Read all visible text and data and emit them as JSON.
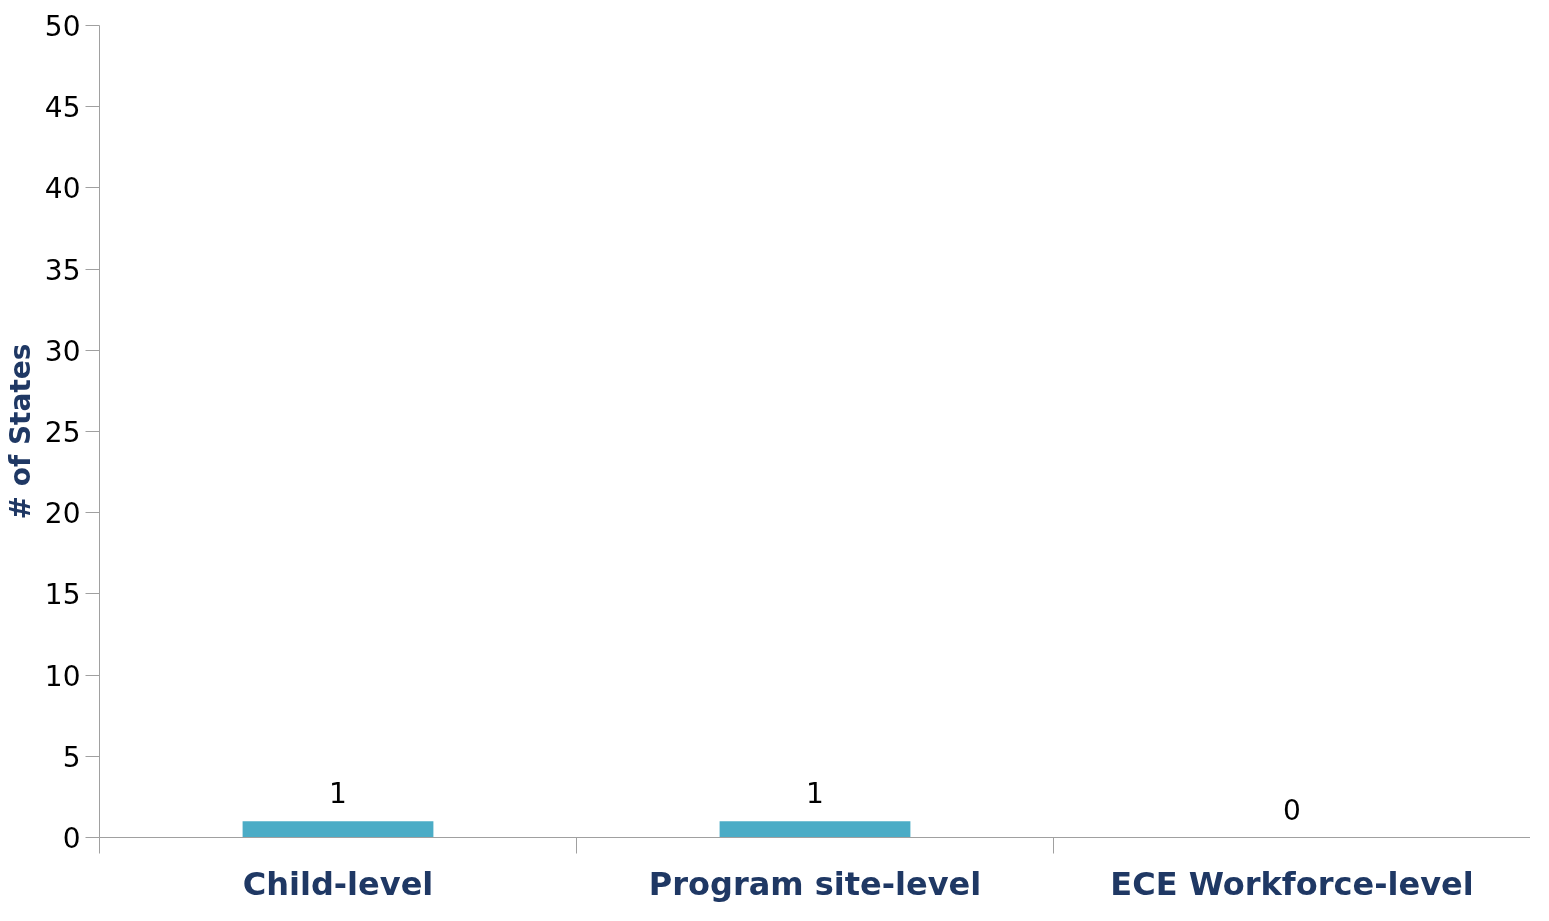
{
  "chart_data": {
    "type": "bar",
    "ylabel": "# of States",
    "categories": [
      "Child-level",
      "Program site-level",
      "ECE Workforce-level"
    ],
    "values": [
      1,
      1,
      0
    ],
    "color": "#4bacc6",
    "ylim": [
      0,
      50
    ],
    "yticks": [
      0,
      5,
      10,
      15,
      20,
      25,
      30,
      35,
      40,
      45,
      50
    ],
    "grid": false,
    "data_labels": true
  }
}
